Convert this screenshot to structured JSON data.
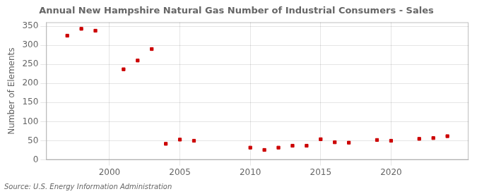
{
  "chart_data": {
    "type": "scatter",
    "title": "Annual New Hampshire Natural Gas Number of Industrial Consumers - Sales",
    "ylabel": "Number of Elements",
    "annotations": [
      "Source: U.S. Energy Information Administration"
    ],
    "x": [
      1997,
      1998,
      1999,
      2001,
      2002,
      2003,
      2004,
      2005,
      2006,
      2010,
      2011,
      2012,
      2013,
      2014,
      2015,
      2016,
      2017,
      2019,
      2020,
      2022,
      2023,
      2024
    ],
    "values": [
      325,
      343,
      338,
      237,
      260,
      290,
      42,
      53,
      50,
      32,
      26,
      32,
      37,
      37,
      54,
      46,
      45,
      52,
      50,
      55,
      57,
      62
    ],
    "color": "#cc0000",
    "marker": "square",
    "xlim": [
      1995.5,
      2025.5
    ],
    "ylim": [
      0,
      360
    ],
    "xticks": [
      2000,
      2005,
      2010,
      2015,
      2020
    ],
    "yticks": [
      0,
      50,
      100,
      150,
      200,
      250,
      300,
      350
    ],
    "grid": true
  }
}
